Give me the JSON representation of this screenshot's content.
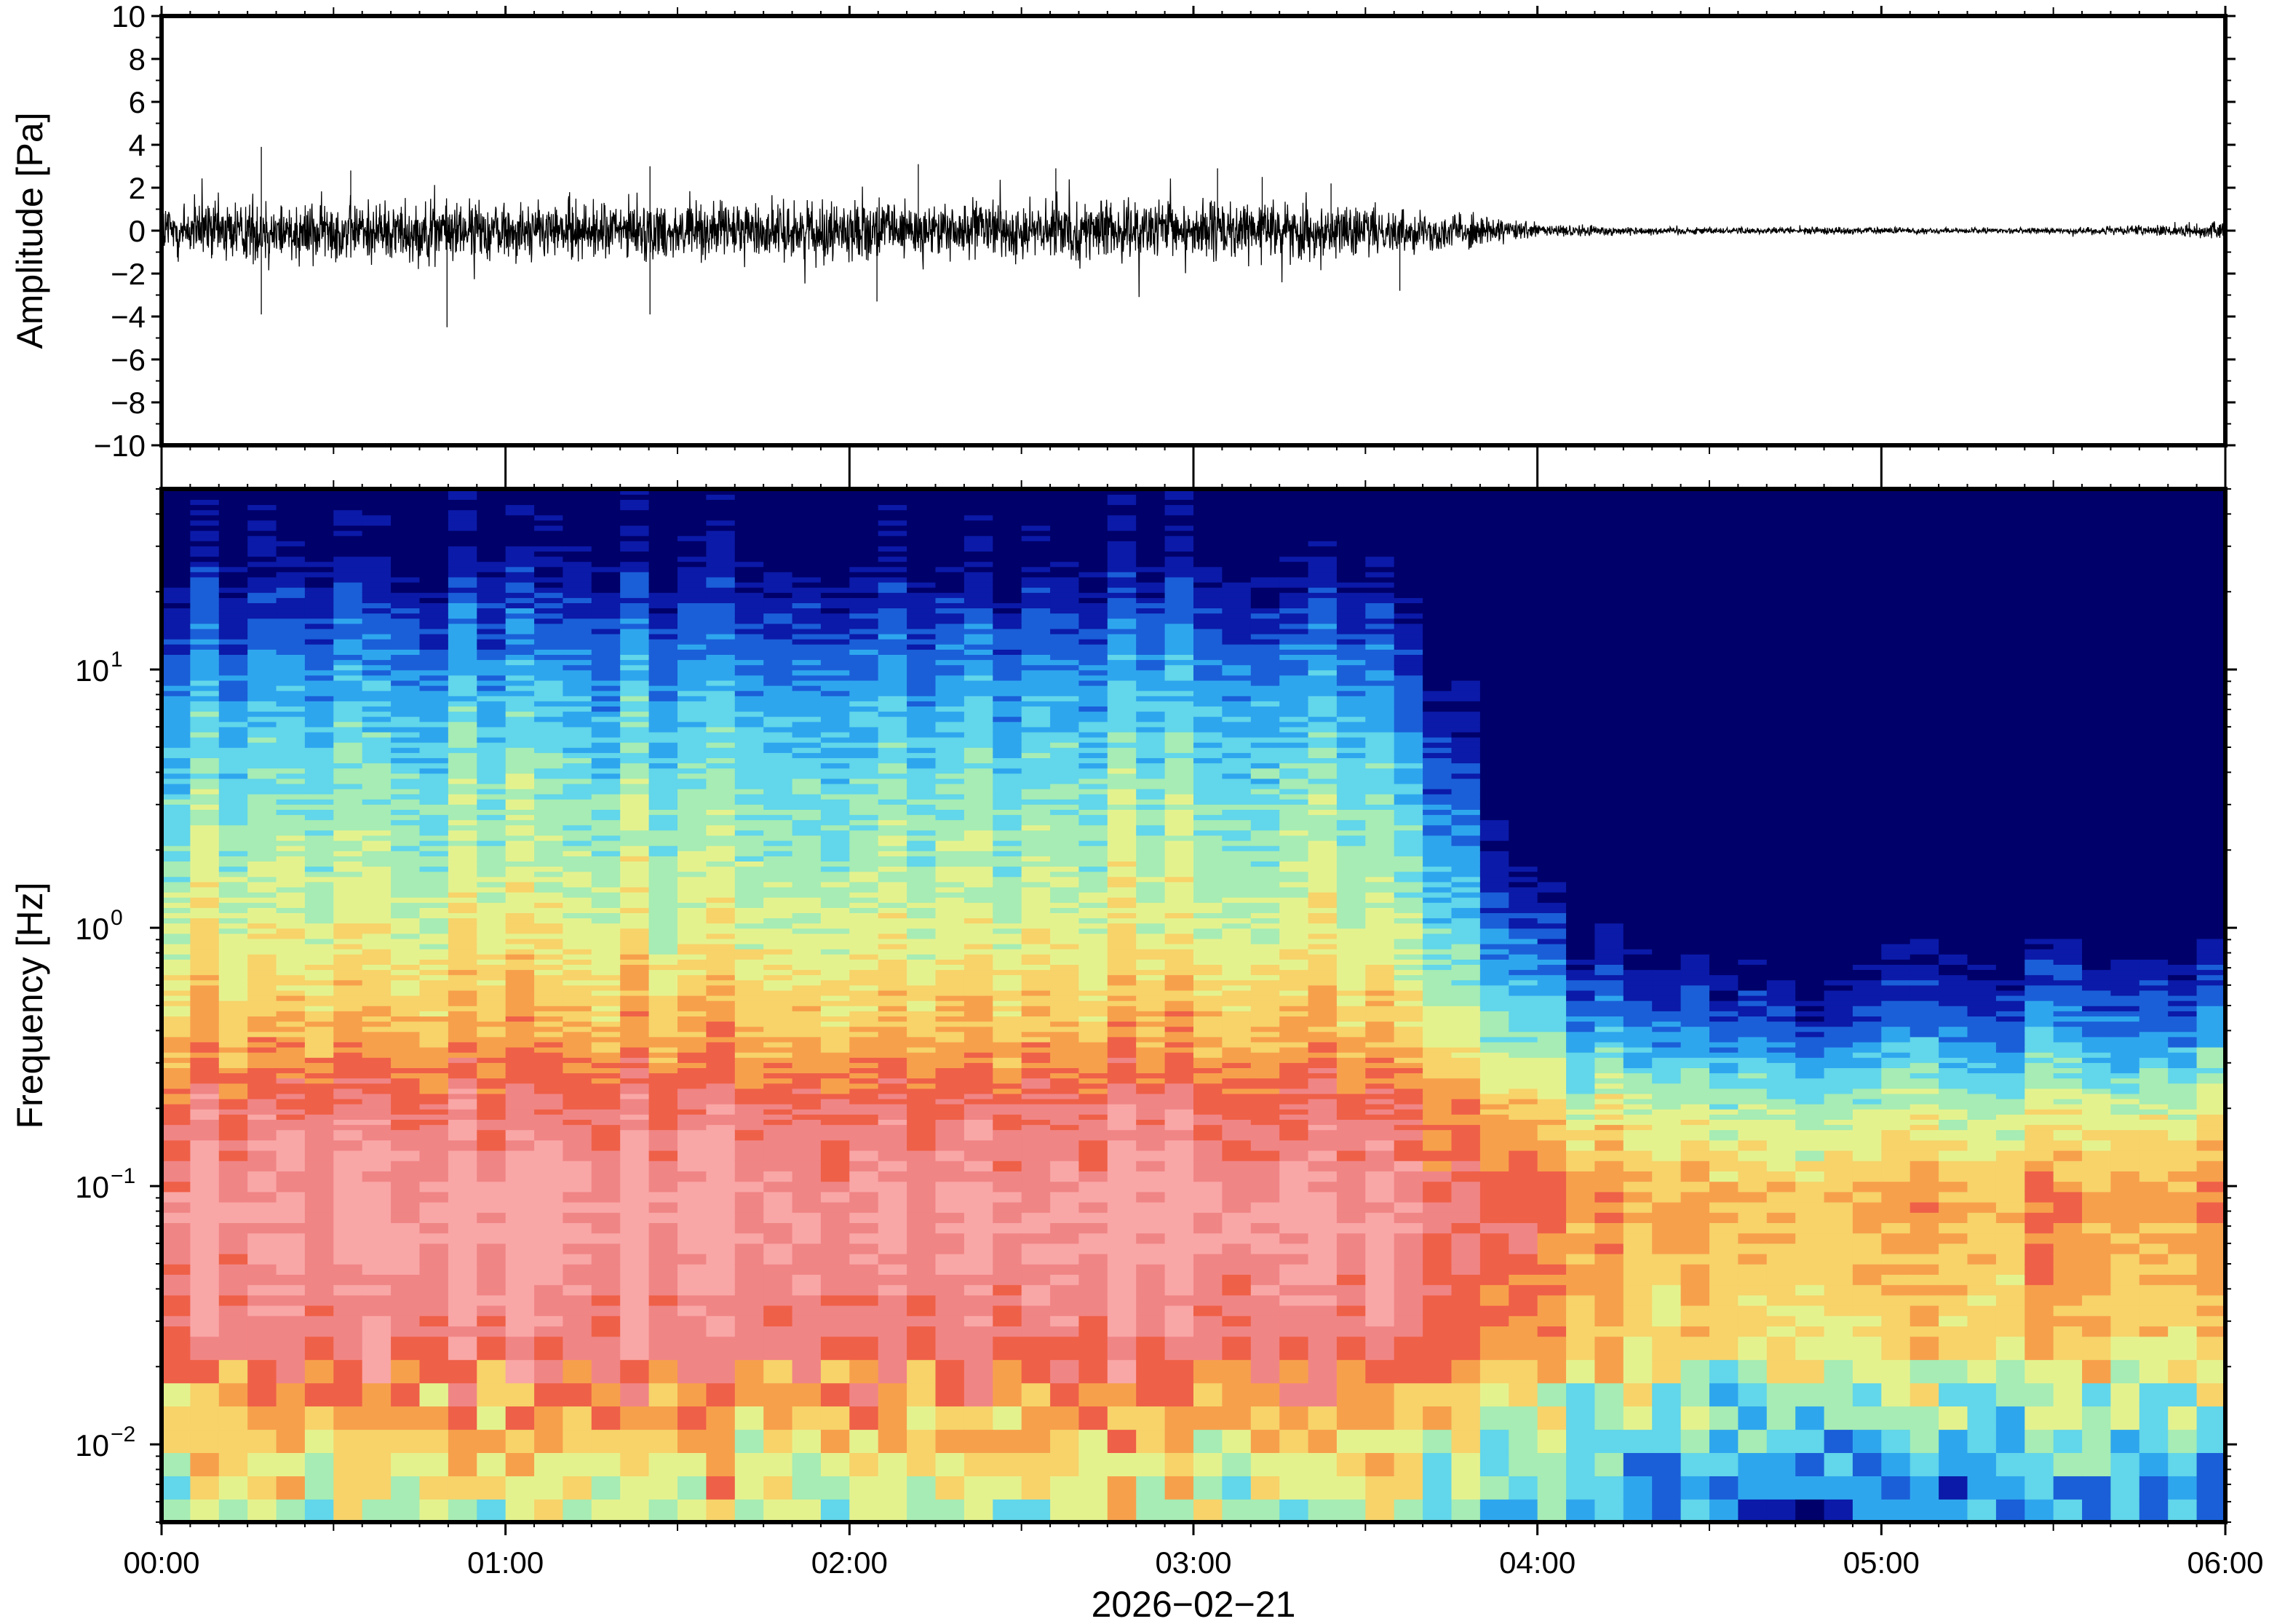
{
  "chart_data": [
    {
      "type": "line",
      "panel": "waveform",
      "ylabel": "Amplitude [Pa]",
      "ylim": [
        -10,
        10
      ],
      "yticks": [
        -10,
        -8,
        -6,
        -4,
        -2,
        0,
        2,
        4,
        6,
        8,
        10
      ],
      "ytick_labels": [
        "−10",
        "−8",
        "−6",
        "−4",
        "−2",
        "0",
        "2",
        "4",
        "6",
        "8",
        "10"
      ],
      "x_range_hours": [
        0,
        6
      ],
      "grid": false,
      "envelope": {
        "x_hours": [
          0.0,
          0.25,
          0.5,
          0.75,
          1.0,
          1.25,
          1.5,
          1.75,
          2.0,
          2.25,
          2.5,
          2.75,
          3.0,
          3.25,
          3.5,
          3.75,
          3.9,
          4.0,
          4.25,
          4.5,
          4.75,
          5.0,
          5.25,
          5.5,
          5.75,
          6.0
        ],
        "amplitude": [
          1.3,
          1.4,
          1.3,
          1.3,
          1.2,
          1.2,
          1.2,
          1.2,
          1.2,
          1.2,
          1.2,
          1.2,
          1.2,
          1.2,
          1.0,
          0.8,
          0.5,
          0.3,
          0.2,
          0.15,
          0.15,
          0.15,
          0.12,
          0.12,
          0.2,
          0.35
        ]
      },
      "peaks": [
        {
          "x": 0.29,
          "y": 3.9
        },
        {
          "x": 0.29,
          "y": -3.9
        },
        {
          "x": 0.83,
          "y": -4.5
        },
        {
          "x": 1.42,
          "y": 3.0
        },
        {
          "x": 1.42,
          "y": -3.9
        },
        {
          "x": 0.55,
          "y": 2.8
        },
        {
          "x": 2.2,
          "y": 3.1
        },
        {
          "x": 2.6,
          "y": 2.9
        },
        {
          "x": 3.07,
          "y": 2.9
        },
        {
          "x": 3.2,
          "y": 2.5
        },
        {
          "x": 2.08,
          "y": -3.3
        },
        {
          "x": 3.4,
          "y": 2.2
        },
        {
          "x": 3.6,
          "y": -2.8
        }
      ]
    },
    {
      "type": "heatmap",
      "panel": "spectrogram",
      "ylabel": "Frequency [Hz]",
      "yscale": "log",
      "ylim": [
        0.005,
        50
      ],
      "yticks": [
        0.01,
        0.1,
        1,
        10
      ],
      "ytick_labels": [
        {
          "base": "10",
          "exp": "−2"
        },
        {
          "base": "10",
          "exp": "−1"
        },
        {
          "base": "10",
          "exp": "0"
        },
        {
          "base": "10",
          "exp": "1"
        }
      ],
      "xlabel": "2026−02−21",
      "xticks_hours": [
        0,
        1,
        2,
        3,
        4,
        5,
        6
      ],
      "xtick_labels": [
        "00:00",
        "01:00",
        "02:00",
        "03:00",
        "04:00",
        "05:00",
        "06:00"
      ],
      "colormap": [
        "#00006a",
        "#0b1aa8",
        "#1a5fd8",
        "#2ea6ee",
        "#62d6ea",
        "#a6ecb4",
        "#e4f28e",
        "#f7d36a",
        "#f7a04c",
        "#ef6048",
        "#f08585",
        "#f9a6a6"
      ],
      "grid": false,
      "level_at_time": {
        "x_hours": [
          0.0,
          3.5,
          3.8,
          3.95,
          4.2,
          4.75,
          4.8,
          5.0,
          6.0
        ],
        "shift": [
          0.0,
          0.0,
          -0.25,
          -0.55,
          -0.68,
          -0.72,
          -0.82,
          -0.72,
          -0.7
        ]
      }
    }
  ]
}
